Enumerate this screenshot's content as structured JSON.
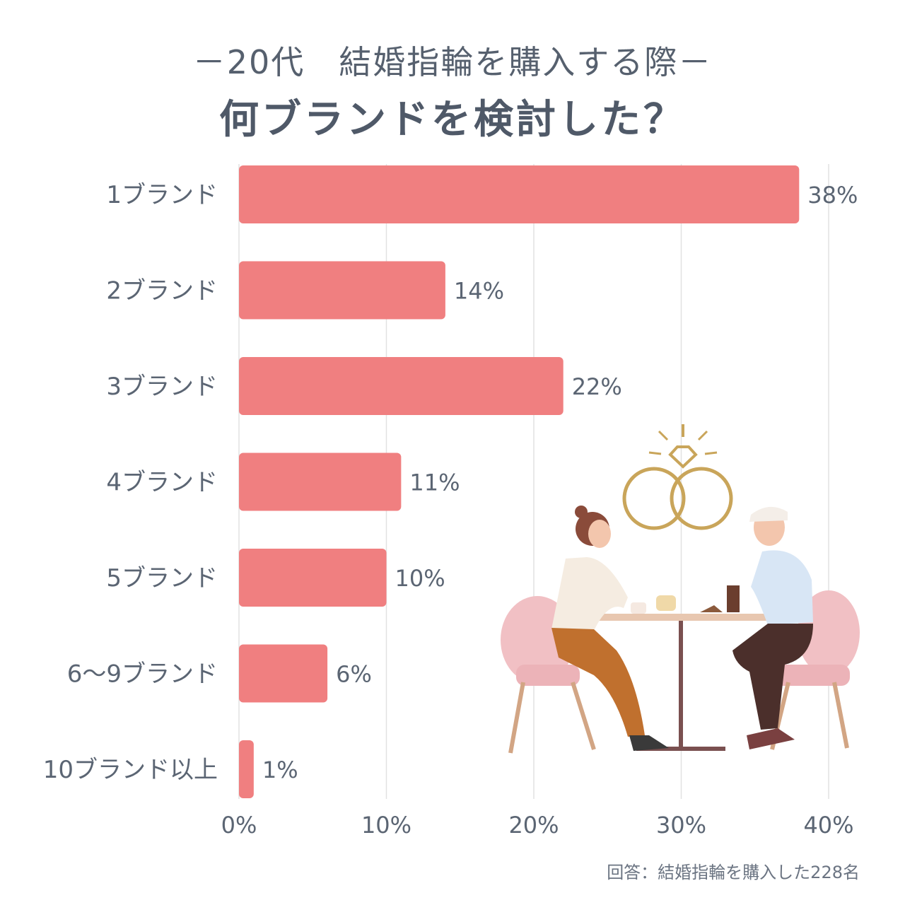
{
  "header": {
    "title": "－20代　結婚指輪を購入する際－",
    "subtitle": "何ブランドを検討した？"
  },
  "footnote": "回答：結婚指輪を購入した228名",
  "colors": {
    "bar": "#f07f80",
    "grid": "#e2e2e2",
    "text": "#5b6573"
  },
  "chart_data": {
    "type": "bar",
    "orientation": "horizontal",
    "categories": [
      "1ブランド",
      "2ブランド",
      "3ブランド",
      "4ブランド",
      "5ブランド",
      "6～9ブランド",
      "10ブランド以上"
    ],
    "values": [
      38,
      14,
      22,
      11,
      10,
      6,
      1
    ],
    "value_labels": [
      "38%",
      "14%",
      "22%",
      "11%",
      "10%",
      "6%",
      "1%"
    ],
    "x_ticks": [
      "0%",
      "10%",
      "20%",
      "30%",
      "40%"
    ],
    "xlim": [
      0,
      40
    ],
    "grid": true,
    "legend": "none"
  },
  "illustration": {
    "description_icon": "couple-at-cafe-with-rings-illustration"
  }
}
